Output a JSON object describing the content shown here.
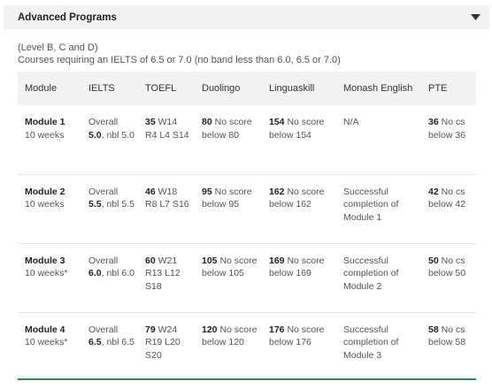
{
  "accordion": {
    "title": "Advanced Programs",
    "icon": "chevron-down-icon"
  },
  "intro": {
    "levels": "(Level B, C and D)",
    "requirement": "Courses requiring an IELTS of 6.5 or 7.0 (no band less than 6.0, 6.5 or 7.0)"
  },
  "table": {
    "headers": [
      "Module",
      "IELTS",
      "TOEFL",
      "Duolingo",
      "Linguaskill",
      "Monash English",
      "PTE"
    ],
    "rows": [
      {
        "module": "Module 1",
        "duration": "10 weeks",
        "ielts_pre": "Overall ",
        "ielts_bold": "5.0",
        "ielts_post": ", nbl 5.0",
        "toefl_bold": "35",
        "toefl_post": " W14 R4 L4 S14",
        "duolingo_bold": "80",
        "duolingo_post": " No score below 80",
        "lingua_bold": "154",
        "lingua_post": " No score below 154",
        "monash": "N/A",
        "pte_bold": "36",
        "pte_post": " No cs below 36"
      },
      {
        "module": "Module 2",
        "duration": "10 weeks",
        "ielts_pre": "Overall ",
        "ielts_bold": "5.5",
        "ielts_post": ", nbl 5.5",
        "toefl_bold": "46",
        "toefl_post": " W18 R8 L7 S16",
        "duolingo_bold": "95",
        "duolingo_post": " No score below 95",
        "lingua_bold": "162",
        "lingua_post": " No score below 162",
        "monash": "Successful completion of Module 1",
        "pte_bold": "42",
        "pte_post": " No cs below 42"
      },
      {
        "module": "Module 3",
        "duration": "10 weeks*",
        "ielts_pre": "Overall ",
        "ielts_bold": "6.0",
        "ielts_post": ", nbl 6.0",
        "toefl_bold": "60",
        "toefl_post": " W21 R13 L12 S18",
        "duolingo_bold": "105",
        "duolingo_post": " No score below 105",
        "lingua_bold": "169",
        "lingua_post": " No score below 169",
        "monash": "Successful completion of Module 2",
        "pte_bold": "50",
        "pte_post": " No cs below 50"
      },
      {
        "module": "Module 4",
        "duration": "10 weeks*",
        "ielts_pre": "Overall ",
        "ielts_bold": "6.5",
        "ielts_post": ", nbl 6.5",
        "toefl_bold": "79",
        "toefl_post": " W24 R19 L20 S20",
        "duolingo_bold": "120",
        "duolingo_post": " No score below 120",
        "lingua_bold": "176",
        "lingua_post": " No score below 176",
        "monash": "Successful completion of Module 3",
        "pte_bold": "58",
        "pte_post": " No cs below 58"
      }
    ]
  },
  "colors": {
    "header_bg": "#f2f2f2",
    "accent_line": "#2e8b57"
  }
}
